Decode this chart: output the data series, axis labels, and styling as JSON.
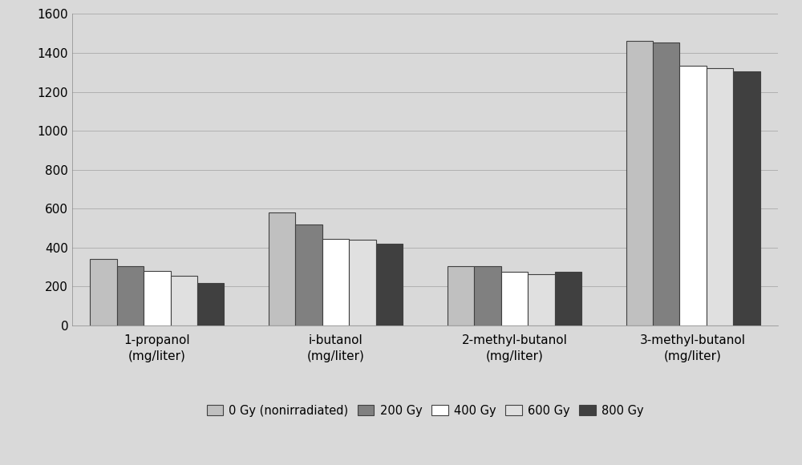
{
  "categories": [
    "1-propanol\n(mg/liter)",
    "i-butanol\n(mg/liter)",
    "2-methyl-butanol\n(mg/liter)",
    "3-methyl-butanol\n(mg/liter)"
  ],
  "series_labels": [
    "0 Gy (nonirradiated)",
    "200 Gy",
    "400 Gy",
    "600 Gy",
    "800 Gy"
  ],
  "values": [
    [
      340,
      580,
      305,
      1460
    ],
    [
      305,
      520,
      305,
      1455
    ],
    [
      280,
      445,
      275,
      1335
    ],
    [
      255,
      440,
      265,
      1320
    ],
    [
      220,
      420,
      275,
      1305
    ]
  ],
  "bar_colors": [
    "#c0c0c0",
    "#808080",
    "#ffffff",
    "#e0e0e0",
    "#404040"
  ],
  "bar_edgecolors": [
    "#404040",
    "#404040",
    "#404040",
    "#404040",
    "#404040"
  ],
  "ylim": [
    0,
    1600
  ],
  "yticks": [
    0,
    200,
    400,
    600,
    800,
    1000,
    1200,
    1400,
    1600
  ],
  "background_color": "#d9d9d9",
  "plot_bg_color": "#d9d9d9",
  "grid_color": "#b0b0b0",
  "figwidth": 10.0,
  "figheight": 5.8,
  "bar_width": 0.15,
  "group_width": 1.0
}
